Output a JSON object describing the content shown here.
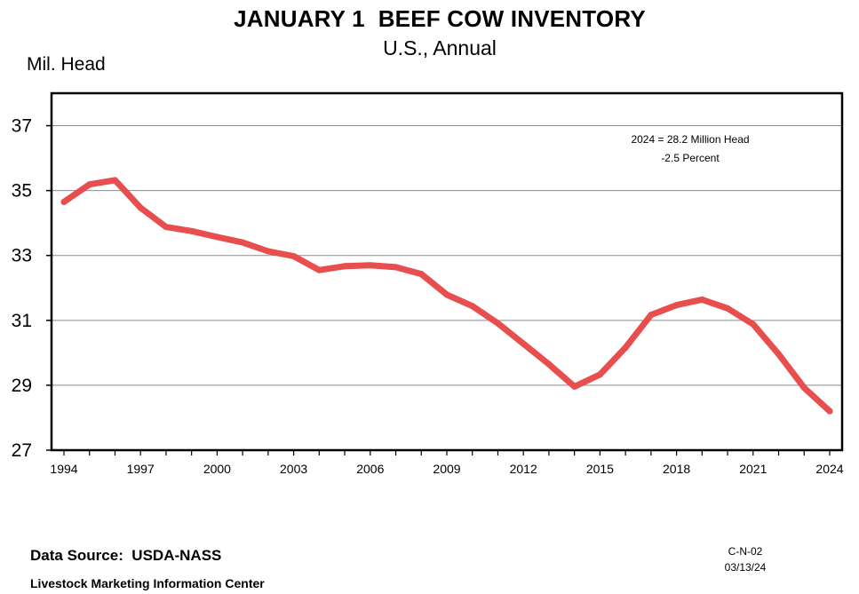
{
  "chart_data": {
    "type": "line",
    "title": "JANUARY 1  BEEF COW INVENTORY",
    "subtitle": "U.S., Annual",
    "ylabel": "Mil. Head",
    "xlabel": "",
    "ylim": [
      27,
      38
    ],
    "yticks": [
      27,
      29,
      31,
      33,
      35,
      37
    ],
    "xlim": [
      1994,
      2024
    ],
    "xticks": [
      1994,
      1997,
      2000,
      2003,
      2006,
      2009,
      2012,
      2015,
      2018,
      2021,
      2024
    ],
    "grid": true,
    "series": [
      {
        "name": "Beef Cow Inventory",
        "color": "#e84e4e",
        "x": [
          1994,
          1995,
          1996,
          1997,
          1998,
          1999,
          2000,
          2001,
          2002,
          2003,
          2004,
          2005,
          2006,
          2007,
          2008,
          2009,
          2010,
          2011,
          2012,
          2013,
          2014,
          2015,
          2016,
          2017,
          2018,
          2019,
          2020,
          2021,
          2022,
          2023,
          2024
        ],
        "values": [
          34.65,
          35.19,
          35.32,
          34.47,
          33.88,
          33.75,
          33.57,
          33.4,
          33.13,
          32.98,
          32.55,
          32.67,
          32.7,
          32.64,
          32.43,
          31.79,
          31.44,
          30.91,
          30.28,
          29.65,
          28.96,
          29.33,
          30.16,
          31.17,
          31.47,
          31.64,
          31.37,
          30.88,
          29.96,
          28.92,
          28.2
        ]
      }
    ],
    "annotation": [
      "2024 = 28.2 Million Head",
      "-2.5 Percent"
    ]
  },
  "footer": {
    "source": "Data Source:  USDA-NASS",
    "center": "Livestock Marketing Information Center",
    "code": "C-N-02",
    "date": "03/13/24"
  }
}
